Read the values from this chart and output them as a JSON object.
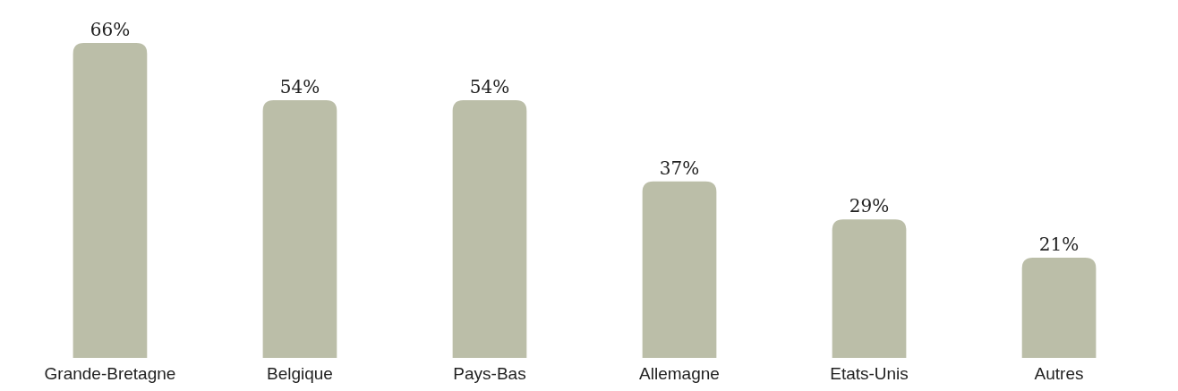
{
  "chart_data": {
    "type": "bar",
    "categories": [
      "Grande-Bretagne",
      "Belgique",
      "Pays-Bas",
      "Allemagne",
      "Etats-Unis",
      "Autres"
    ],
    "values": [
      66,
      54,
      54,
      37,
      29,
      21
    ],
    "value_labels": [
      "66%",
      "54%",
      "54%",
      "37%",
      "29%",
      "21%"
    ],
    "color": "#bbbea8"
  }
}
